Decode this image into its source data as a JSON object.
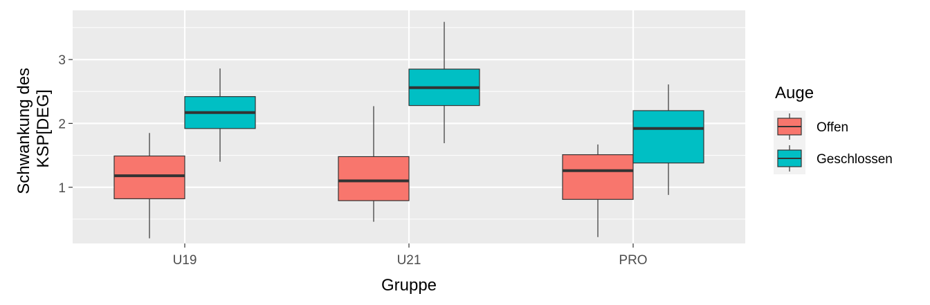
{
  "chart_data": {
    "type": "boxplot",
    "title": "",
    "xlabel": "Gruppe",
    "ylabel_lines": [
      "Schwankung des",
      "KSP[DEG]"
    ],
    "categories": [
      "U19",
      "U21",
      "PRO"
    ],
    "yticks": [
      1,
      2,
      3
    ],
    "ylim": [
      0.12,
      3.77
    ],
    "grid": true,
    "legend": {
      "title": "Auge",
      "position": "right"
    },
    "series": [
      {
        "name": "Offen",
        "color": "#F8766D",
        "boxes": [
          {
            "category": "U19",
            "min": 0.2,
            "q1": 0.82,
            "median": 1.18,
            "q3": 1.49,
            "max": 1.85
          },
          {
            "category": "U21",
            "min": 0.46,
            "q1": 0.79,
            "median": 1.1,
            "q3": 1.48,
            "max": 2.27
          },
          {
            "category": "PRO",
            "min": 0.22,
            "q1": 0.81,
            "median": 1.26,
            "q3": 1.51,
            "max": 1.67
          }
        ]
      },
      {
        "name": "Geschlossen",
        "color": "#00BFC4",
        "boxes": [
          {
            "category": "U19",
            "min": 1.4,
            "q1": 1.92,
            "median": 2.17,
            "q3": 2.42,
            "max": 2.86
          },
          {
            "category": "U21",
            "min": 1.69,
            "q1": 2.28,
            "median": 2.56,
            "q3": 2.85,
            "max": 3.59
          },
          {
            "category": "PRO",
            "min": 0.88,
            "q1": 1.38,
            "median": 1.92,
            "q3": 2.2,
            "max": 2.61
          }
        ]
      }
    ]
  }
}
